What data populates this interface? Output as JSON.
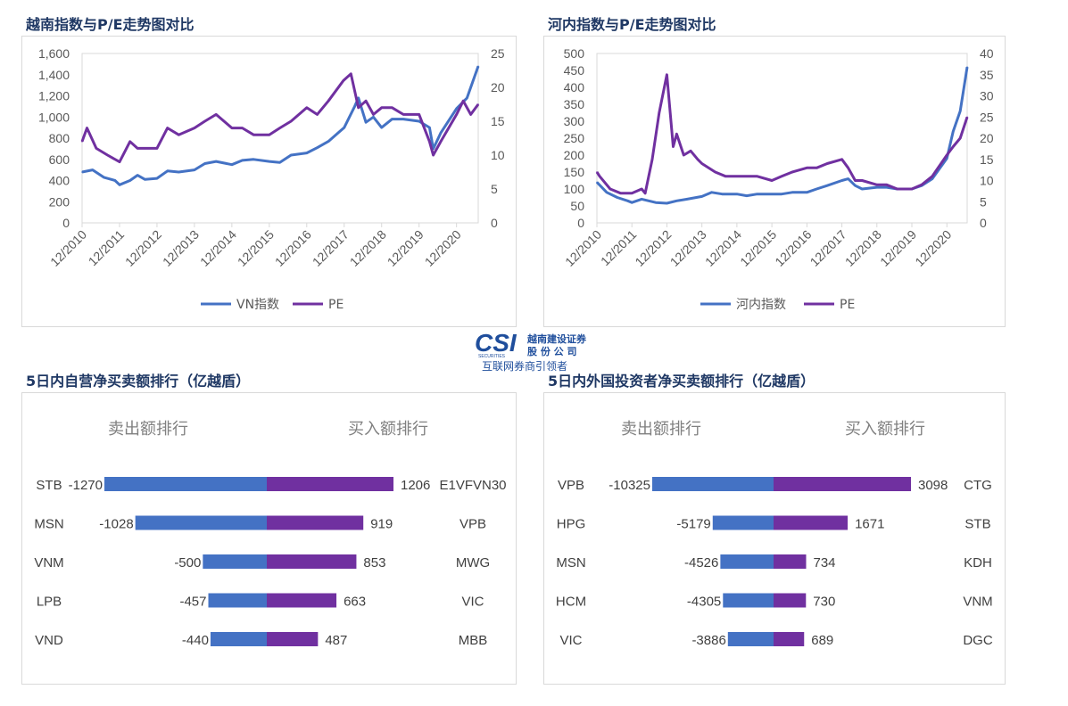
{
  "titles": {
    "vn_pe": "越南指数与P/E走势图对比",
    "hn_pe": "河内指数与P/E走势图对比",
    "prop_rank": "5日内自营净买卖额排行（亿越盾）",
    "foreign_rank": "5日内外国投资者净买卖额排行（亿越盾）"
  },
  "logo": {
    "mark": "CSI",
    "sub": "SECURITIES",
    "company_line1": "越南建设证券",
    "company_line2": "股 份 公 司",
    "slogan": "互联网券商引领者"
  },
  "colors": {
    "index_line": "#4472c4",
    "pe_line": "#7030a0",
    "sell_bar": "#4472c4",
    "buy_bar": "#7030a0",
    "title": "#1f3864"
  },
  "chart_data": [
    {
      "type": "line",
      "id": "vn",
      "x_ticks": [
        "12/2010",
        "12/2011",
        "12/2012",
        "12/2013",
        "12/2014",
        "12/2015",
        "12/2016",
        "12/2017",
        "12/2018",
        "12/2019",
        "12/2020"
      ],
      "y_left_ticks": [
        "0",
        "200",
        "400",
        "600",
        "800",
        "1,000",
        "1,200",
        "1,400",
        "1,600"
      ],
      "y_right_ticks": [
        "0",
        "5",
        "10",
        "15",
        "20",
        "25"
      ],
      "y_left_range": [
        0,
        1600
      ],
      "y_right_range": [
        0,
        25
      ],
      "x_range": [
        2010.92,
        2021.5
      ],
      "series": [
        {
          "name": "VN指数",
          "axis": "left",
          "x": [
            2010.92,
            2011.2,
            2011.5,
            2011.8,
            2011.92,
            2012.2,
            2012.4,
            2012.6,
            2012.92,
            2013.2,
            2013.5,
            2013.92,
            2014.2,
            2014.5,
            2014.92,
            2015.2,
            2015.5,
            2015.92,
            2016.2,
            2016.5,
            2016.92,
            2017.2,
            2017.5,
            2017.92,
            2018.2,
            2018.3,
            2018.5,
            2018.7,
            2018.92,
            2019.2,
            2019.5,
            2019.92,
            2020.2,
            2020.3,
            2020.5,
            2020.92,
            2021.2,
            2021.5
          ],
          "y": [
            480,
            500,
            430,
            400,
            360,
            400,
            450,
            410,
            420,
            490,
            480,
            500,
            560,
            580,
            550,
            590,
            600,
            580,
            570,
            640,
            660,
            710,
            770,
            900,
            1100,
            1180,
            950,
            1000,
            900,
            980,
            980,
            960,
            900,
            700,
            850,
            1080,
            1180,
            1480
          ]
        },
        {
          "name": "PE",
          "axis": "right",
          "x": [
            2010.92,
            2011.05,
            2011.3,
            2011.6,
            2011.92,
            2012.2,
            2012.4,
            2012.6,
            2012.92,
            2013.2,
            2013.5,
            2013.92,
            2014.2,
            2014.5,
            2014.92,
            2015.2,
            2015.5,
            2015.92,
            2016.2,
            2016.5,
            2016.92,
            2017.2,
            2017.5,
            2017.9,
            2018.1,
            2018.3,
            2018.5,
            2018.7,
            2018.92,
            2019.2,
            2019.5,
            2019.92,
            2020.2,
            2020.3,
            2020.5,
            2020.92,
            2021.1,
            2021.3,
            2021.5
          ],
          "y": [
            12,
            14,
            11,
            10,
            9,
            12,
            11,
            11,
            11,
            14,
            13,
            14,
            15,
            16,
            14,
            14,
            13,
            13,
            14,
            15,
            17,
            16,
            18,
            21,
            22,
            17,
            18,
            16,
            17,
            17,
            16,
            16,
            12,
            10,
            12,
            16,
            18,
            16,
            17.5
          ]
        }
      ],
      "legend": [
        "VN指数",
        "PE"
      ],
      "legend_position": "bottom"
    },
    {
      "type": "line",
      "id": "hn",
      "x_ticks": [
        "12/2010",
        "12/2011",
        "12/2012",
        "12/2013",
        "12/2014",
        "12/2015",
        "12/2016",
        "12/2017",
        "12/2018",
        "12/2019",
        "12/2020"
      ],
      "y_left_ticks": [
        "0",
        "50",
        "100",
        "150",
        "200",
        "250",
        "300",
        "350",
        "400",
        "450",
        "500"
      ],
      "y_right_ticks": [
        "0",
        "5",
        "10",
        "15",
        "20",
        "25",
        "30",
        "35",
        "40"
      ],
      "y_left_range": [
        0,
        500
      ],
      "y_right_range": [
        0,
        40
      ],
      "x_range": [
        2010.92,
        2021.5
      ],
      "series": [
        {
          "name": "河内指数",
          "axis": "left",
          "x": [
            2010.92,
            2011.2,
            2011.5,
            2011.8,
            2011.92,
            2012.2,
            2012.4,
            2012.6,
            2012.92,
            2013.2,
            2013.5,
            2013.92,
            2014.2,
            2014.5,
            2014.92,
            2015.2,
            2015.5,
            2015.92,
            2016.2,
            2016.5,
            2016.92,
            2017.2,
            2017.5,
            2017.92,
            2018.1,
            2018.3,
            2018.5,
            2018.92,
            2019.2,
            2019.5,
            2019.92,
            2020.2,
            2020.5,
            2020.92,
            2021.1,
            2021.3,
            2021.5
          ],
          "y": [
            120,
            90,
            75,
            65,
            60,
            70,
            65,
            60,
            58,
            65,
            70,
            78,
            90,
            85,
            85,
            80,
            85,
            85,
            85,
            90,
            90,
            100,
            110,
            125,
            130,
            110,
            100,
            105,
            105,
            100,
            100,
            110,
            130,
            190,
            270,
            330,
            460
          ]
        },
        {
          "name": "PE",
          "axis": "right",
          "x": [
            2010.92,
            2011.0,
            2011.3,
            2011.6,
            2011.92,
            2012.2,
            2012.3,
            2012.5,
            2012.7,
            2012.92,
            2013.1,
            2013.2,
            2013.4,
            2013.6,
            2013.8,
            2013.92,
            2014.3,
            2014.6,
            2014.92,
            2015.2,
            2015.5,
            2015.92,
            2016.2,
            2016.5,
            2016.92,
            2017.2,
            2017.5,
            2017.92,
            2018.1,
            2018.3,
            2018.5,
            2018.92,
            2019.2,
            2019.5,
            2019.92,
            2020.2,
            2020.5,
            2020.92,
            2021.1,
            2021.3,
            2021.5
          ],
          "y": [
            12,
            11,
            8,
            7,
            7,
            8,
            7,
            15,
            26,
            35,
            18,
            21,
            16,
            17,
            15,
            14,
            12,
            11,
            11,
            11,
            11,
            10,
            11,
            12,
            13,
            13,
            14,
            15,
            13,
            10,
            10,
            9,
            9,
            8,
            8,
            9,
            11,
            16,
            18,
            20,
            25
          ]
        }
      ],
      "legend": [
        "河内指数",
        "PE"
      ],
      "legend_position": "bottom"
    },
    {
      "type": "bar",
      "id": "prop",
      "sell_label": "卖出额排行",
      "buy_label": "买入额排行",
      "sell_names": [
        "STB",
        "MSN",
        "VNM",
        "LPB",
        "VND"
      ],
      "sell_values": [
        -1270,
        -1028,
        -500,
        -457,
        -440
      ],
      "buy_names": [
        "E1VFVN30",
        "VPB",
        "MWG",
        "VIC",
        "MBB"
      ],
      "buy_values": [
        1206,
        919,
        853,
        663,
        487
      ],
      "sell_max": 1270,
      "buy_max": 1206
    },
    {
      "type": "bar",
      "id": "foreign",
      "sell_label": "卖出额排行",
      "buy_label": "买入额排行",
      "sell_names": [
        "VPB",
        "HPG",
        "MSN",
        "HCM",
        "VIC"
      ],
      "sell_values": [
        -10325,
        -5179,
        -4526,
        -4305,
        -3886
      ],
      "buy_names": [
        "CTG",
        "STB",
        "KDH",
        "VNM",
        "DGC"
      ],
      "buy_values": [
        3098,
        1671,
        734,
        730,
        689
      ],
      "sell_max": 10325,
      "buy_max": 3098
    }
  ]
}
